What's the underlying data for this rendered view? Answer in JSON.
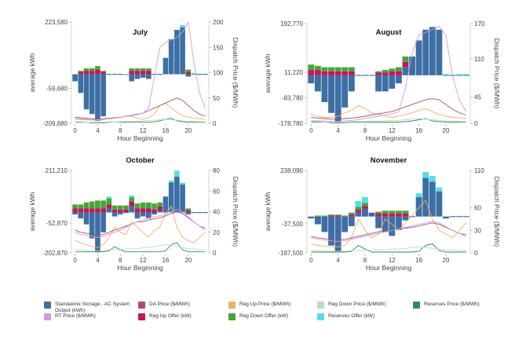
{
  "colors": {
    "storage": "#3d6fa5",
    "da_price": "#a8506a",
    "reg_up_price": "#f0b064",
    "reg_down_price": "#b9dcc9",
    "reserves_price": "#2f8a62",
    "rt_price": "#cf9be3",
    "reg_up_offer": "#c8135f",
    "reg_down_offer": "#43a832",
    "reserves_offer": "#52e0e6"
  },
  "legend": [
    {
      "key": "storage",
      "label": "Standalone Storage - AC System Output (kWh)",
      "kind": "bar"
    },
    {
      "key": "da_price",
      "label": "DA Price ($/MWh)",
      "kind": "line"
    },
    {
      "key": "reg_up_price",
      "label": "Reg Up Price ($/MWh)",
      "kind": "line"
    },
    {
      "key": "reg_down_price",
      "label": "Reg Down Price ($/MWh)",
      "kind": "line"
    },
    {
      "key": "reserves_price",
      "label": "Reserves Price ($/MWh)",
      "kind": "line"
    },
    {
      "key": "rt_price",
      "label": "RT Price ($/MWh)",
      "kind": "line"
    },
    {
      "key": "reg_up_offer",
      "label": "Reg Up Offer (kW)",
      "kind": "bar"
    },
    {
      "key": "reg_down_offer",
      "label": "Reg Down Offer (kW)",
      "kind": "bar"
    },
    {
      "key": "reserves_offer",
      "label": "Reserves Offer (kW)",
      "kind": "bar"
    }
  ],
  "chart_data": [
    {
      "type": "bar",
      "title": "July",
      "xlabel": "Hour Beginning",
      "ylabel": "average kWh",
      "y2label": "Dispatch Price ($/MWh)",
      "ylim": [
        -209680,
        223580
      ],
      "yticks": [
        223580,
        -59680,
        -209680
      ],
      "y2lim": [
        0,
        200
      ],
      "y2ticks": [
        0,
        50,
        100,
        150,
        200
      ],
      "xticks": [
        0,
        4,
        8,
        12,
        16,
        20
      ],
      "x": [
        0,
        1,
        2,
        3,
        4,
        5,
        6,
        7,
        8,
        9,
        10,
        11,
        12,
        13,
        14,
        15,
        16,
        17,
        18,
        19,
        20,
        21,
        22,
        23
      ],
      "storage": [
        -30000,
        -80000,
        -150000,
        -170000,
        -200000,
        -180000,
        0,
        0,
        0,
        -3000,
        -30000,
        -20000,
        -15000,
        -20000,
        0,
        0,
        70000,
        150000,
        190000,
        200000,
        -10000,
        0,
        0,
        0
      ],
      "reg_up_offer": [
        0,
        10000,
        15000,
        15000,
        20000,
        10000,
        0,
        0,
        0,
        0,
        15000,
        15000,
        15000,
        15000,
        0,
        0,
        0,
        0,
        0,
        0,
        10000,
        0,
        0,
        0
      ],
      "reg_down_offer": [
        0,
        5000,
        10000,
        10000,
        15000,
        5000,
        0,
        0,
        0,
        0,
        10000,
        10000,
        10000,
        10000,
        0,
        0,
        0,
        0,
        0,
        0,
        10000,
        0,
        0,
        0
      ],
      "reserves_offer": [
        0,
        0,
        0,
        0,
        0,
        0,
        0,
        0,
        0,
        0,
        0,
        0,
        0,
        0,
        0,
        0,
        0,
        0,
        0,
        10000,
        0,
        5000,
        0,
        0
      ],
      "rt_price": [
        10,
        9,
        8,
        7,
        7,
        8,
        9,
        10,
        12,
        14,
        15,
        17,
        20,
        30,
        90,
        150,
        160,
        165,
        170,
        180,
        200,
        120,
        60,
        30
      ],
      "da_price": [
        12,
        11,
        10,
        9,
        8,
        9,
        10,
        11,
        12,
        14,
        16,
        18,
        20,
        25,
        30,
        35,
        40,
        45,
        50,
        45,
        35,
        25,
        18,
        14
      ],
      "reg_up_price": [
        8,
        7,
        7,
        6,
        6,
        7,
        9,
        10,
        11,
        15,
        13,
        10,
        8,
        12,
        18,
        35,
        40,
        30,
        22,
        15,
        12,
        10,
        9,
        8
      ],
      "reg_down_price": [
        3,
        3,
        2,
        2,
        2,
        2,
        3,
        3,
        3,
        4,
        4,
        4,
        5,
        5,
        6,
        7,
        8,
        7,
        6,
        5,
        4,
        4,
        3,
        3
      ],
      "reserves_price": [
        2,
        2,
        2,
        1,
        1,
        1,
        2,
        3,
        2,
        2,
        2,
        3,
        2,
        2,
        3,
        5,
        8,
        10,
        5,
        3,
        2,
        2,
        2,
        2
      ]
    },
    {
      "type": "bar",
      "title": "August",
      "xlabel": "Hour Beginning",
      "ylabel": "average kWh",
      "y2label": "Dispatch Price ($/MWh)",
      "ylim": [
        -178780,
        192770
      ],
      "yticks": [
        192770,
        11220,
        -83780,
        -178780
      ],
      "y2lim": [
        0,
        170
      ],
      "y2ticks": [
        0,
        45,
        110,
        170
      ],
      "xticks": [
        0,
        4,
        8,
        12,
        16,
        20
      ],
      "x": [
        0,
        1,
        2,
        3,
        4,
        5,
        6,
        7,
        8,
        9,
        10,
        11,
        12,
        13,
        14,
        15,
        16,
        17,
        18,
        19,
        20,
        21,
        22,
        23
      ],
      "storage": [
        -30000,
        -60000,
        -100000,
        -140000,
        -178000,
        -120000,
        -60000,
        0,
        0,
        0,
        -60000,
        -60000,
        -50000,
        -30000,
        30000,
        70000,
        130000,
        170000,
        180000,
        170000,
        0,
        0,
        0,
        0
      ],
      "reg_up_offer": [
        20000,
        20000,
        15000,
        15000,
        15000,
        15000,
        15000,
        0,
        0,
        0,
        10000,
        10000,
        15000,
        15000,
        20000,
        0,
        0,
        0,
        0,
        0,
        0,
        0,
        0,
        0
      ],
      "reg_down_offer": [
        20000,
        15000,
        15000,
        15000,
        15000,
        15000,
        15000,
        0,
        0,
        0,
        5000,
        10000,
        10000,
        15000,
        20000,
        0,
        0,
        0,
        0,
        0,
        0,
        0,
        0,
        0
      ],
      "reserves_offer": [
        0,
        0,
        0,
        0,
        0,
        0,
        0,
        0,
        0,
        0,
        0,
        0,
        0,
        0,
        0,
        0,
        0,
        0,
        0,
        0,
        5000,
        0,
        5000,
        5000
      ],
      "rt_price": [
        5,
        4,
        4,
        3,
        3,
        4,
        5,
        6,
        8,
        10,
        12,
        14,
        16,
        20,
        60,
        120,
        150,
        155,
        160,
        165,
        150,
        80,
        40,
        20
      ],
      "da_price": [
        10,
        9,
        8,
        7,
        7,
        8,
        9,
        10,
        12,
        14,
        16,
        18,
        20,
        24,
        28,
        32,
        36,
        40,
        42,
        40,
        32,
        24,
        18,
        14
      ],
      "reg_up_price": [
        15,
        12,
        10,
        10,
        12,
        18,
        22,
        30,
        25,
        18,
        15,
        12,
        10,
        12,
        15,
        18,
        22,
        25,
        20,
        15,
        12,
        10,
        9,
        8
      ],
      "reg_down_price": [
        3,
        3,
        2,
        2,
        2,
        2,
        3,
        3,
        3,
        4,
        4,
        4,
        5,
        5,
        6,
        7,
        8,
        7,
        6,
        5,
        4,
        4,
        3,
        3
      ],
      "reserves_price": [
        2,
        2,
        2,
        1,
        1,
        1,
        2,
        2,
        2,
        2,
        2,
        2,
        2,
        2,
        3,
        4,
        6,
        8,
        4,
        3,
        2,
        2,
        2,
        2
      ]
    },
    {
      "type": "bar",
      "title": "October",
      "xlabel": "Hour Beginning",
      "ylabel": "average kWh",
      "y2label": "Dispatch Price ($/MWh)",
      "ylim": [
        -202870,
        211210
      ],
      "yticks": [
        211210,
        -52870,
        -202870
      ],
      "y2lim": [
        0,
        80
      ],
      "y2ticks": [
        0,
        20,
        40,
        60,
        80
      ],
      "xticks": [
        0,
        4,
        8,
        12,
        16,
        20
      ],
      "x": [
        0,
        1,
        2,
        3,
        4,
        5,
        6,
        7,
        8,
        9,
        10,
        11,
        12,
        13,
        14,
        15,
        16,
        17,
        18,
        19,
        20,
        21,
        22,
        23
      ],
      "storage": [
        -10000,
        -30000,
        -60000,
        -130000,
        -200000,
        -100000,
        20000,
        -20000,
        -10000,
        0,
        30000,
        -30000,
        -20000,
        -30000,
        -10000,
        10000,
        80000,
        150000,
        180000,
        140000,
        -10000,
        0,
        0,
        0
      ],
      "reg_up_offer": [
        20000,
        20000,
        20000,
        20000,
        20000,
        20000,
        20000,
        15000,
        15000,
        15000,
        25000,
        20000,
        20000,
        20000,
        15000,
        20000,
        0,
        0,
        0,
        0,
        10000,
        0,
        0,
        0
      ],
      "reg_down_offer": [
        20000,
        20000,
        30000,
        35000,
        40000,
        40000,
        30000,
        20000,
        20000,
        20000,
        20000,
        25000,
        30000,
        30000,
        30000,
        20000,
        0,
        0,
        0,
        0,
        10000,
        0,
        0,
        0
      ],
      "reserves_offer": [
        0,
        0,
        0,
        0,
        0,
        0,
        10000,
        0,
        0,
        0,
        10000,
        0,
        0,
        0,
        0,
        0,
        0,
        10000,
        30000,
        10000,
        0,
        0,
        0,
        0
      ],
      "rt_price": [
        20,
        18,
        17,
        16,
        15,
        16,
        18,
        20,
        22,
        25,
        28,
        30,
        32,
        34,
        35,
        36,
        38,
        40,
        42,
        40,
        35,
        30,
        26,
        22
      ],
      "da_price": [
        22,
        20,
        19,
        18,
        17,
        18,
        20,
        22,
        24,
        26,
        28,
        30,
        30,
        32,
        33,
        34,
        36,
        38,
        40,
        38,
        34,
        30,
        26,
        24
      ],
      "reg_up_price": [
        12,
        10,
        8,
        6,
        5,
        8,
        15,
        25,
        20,
        18,
        30,
        25,
        20,
        15,
        22,
        25,
        38,
        45,
        25,
        15,
        12,
        10,
        15,
        20
      ],
      "reg_down_price": [
        3,
        3,
        2,
        2,
        2,
        2,
        3,
        3,
        3,
        4,
        4,
        4,
        5,
        5,
        6,
        7,
        8,
        7,
        6,
        5,
        4,
        4,
        3,
        3
      ],
      "reserves_price": [
        1,
        1,
        1,
        1,
        1,
        1,
        2,
        6,
        3,
        1,
        1,
        1,
        1,
        1,
        1,
        1,
        2,
        8,
        10,
        3,
        1,
        1,
        1,
        1
      ]
    },
    {
      "type": "bar",
      "title": "November",
      "xlabel": "Hour Beginning",
      "ylabel": "average kWh",
      "y2label": "Dispatch Price ($/MWh)",
      "ylim": [
        -187500,
        238090
      ],
      "yticks": [
        238090,
        -37500,
        -187500
      ],
      "y2lim": [
        0,
        110
      ],
      "y2ticks": [
        0,
        30,
        60,
        110
      ],
      "xticks": [
        0,
        4,
        8,
        12,
        16,
        20
      ],
      "x": [
        0,
        1,
        2,
        3,
        4,
        5,
        6,
        7,
        8,
        9,
        10,
        11,
        12,
        13,
        14,
        15,
        16,
        17,
        18,
        19,
        20,
        21,
        22,
        23
      ],
      "storage": [
        -10000,
        -40000,
        -80000,
        -150000,
        -180000,
        -80000,
        -50000,
        20000,
        40000,
        20000,
        -60000,
        -80000,
        -100000,
        -70000,
        -20000,
        0,
        100000,
        200000,
        180000,
        130000,
        -10000,
        0,
        0,
        0
      ],
      "reg_up_offer": [
        0,
        0,
        0,
        5000,
        5000,
        0,
        10000,
        15000,
        15000,
        0,
        15000,
        15000,
        15000,
        15000,
        15000,
        0,
        0,
        0,
        0,
        0,
        0,
        0,
        0,
        0
      ],
      "reg_down_offer": [
        0,
        5000,
        5000,
        5000,
        5000,
        5000,
        10000,
        15000,
        15000,
        0,
        10000,
        15000,
        15000,
        15000,
        15000,
        0,
        0,
        0,
        0,
        0,
        0,
        0,
        0,
        0
      ],
      "reserves_offer": [
        0,
        0,
        0,
        0,
        0,
        0,
        0,
        30000,
        30000,
        0,
        0,
        0,
        0,
        0,
        0,
        0,
        20000,
        30000,
        30000,
        20000,
        0,
        0,
        0,
        0
      ],
      "rt_price": [
        20,
        18,
        17,
        16,
        15,
        16,
        18,
        20,
        22,
        24,
        26,
        28,
        30,
        32,
        34,
        36,
        38,
        40,
        42,
        40,
        35,
        30,
        26,
        22
      ],
      "da_price": [
        22,
        20,
        19,
        18,
        17,
        18,
        20,
        22,
        24,
        26,
        28,
        30,
        30,
        32,
        33,
        34,
        36,
        38,
        40,
        38,
        34,
        30,
        26,
        24
      ],
      "reg_up_price": [
        12,
        10,
        9,
        8,
        8,
        10,
        20,
        45,
        30,
        20,
        25,
        45,
        38,
        30,
        40,
        50,
        60,
        70,
        45,
        30,
        25,
        20,
        30,
        40
      ],
      "reg_down_price": [
        3,
        3,
        2,
        2,
        2,
        2,
        3,
        3,
        3,
        4,
        4,
        4,
        5,
        5,
        6,
        7,
        8,
        7,
        6,
        5,
        4,
        4,
        3,
        3
      ],
      "reserves_price": [
        1,
        1,
        1,
        1,
        1,
        1,
        2,
        10,
        5,
        1,
        1,
        1,
        1,
        1,
        1,
        1,
        2,
        10,
        12,
        3,
        1,
        1,
        1,
        1
      ]
    }
  ]
}
